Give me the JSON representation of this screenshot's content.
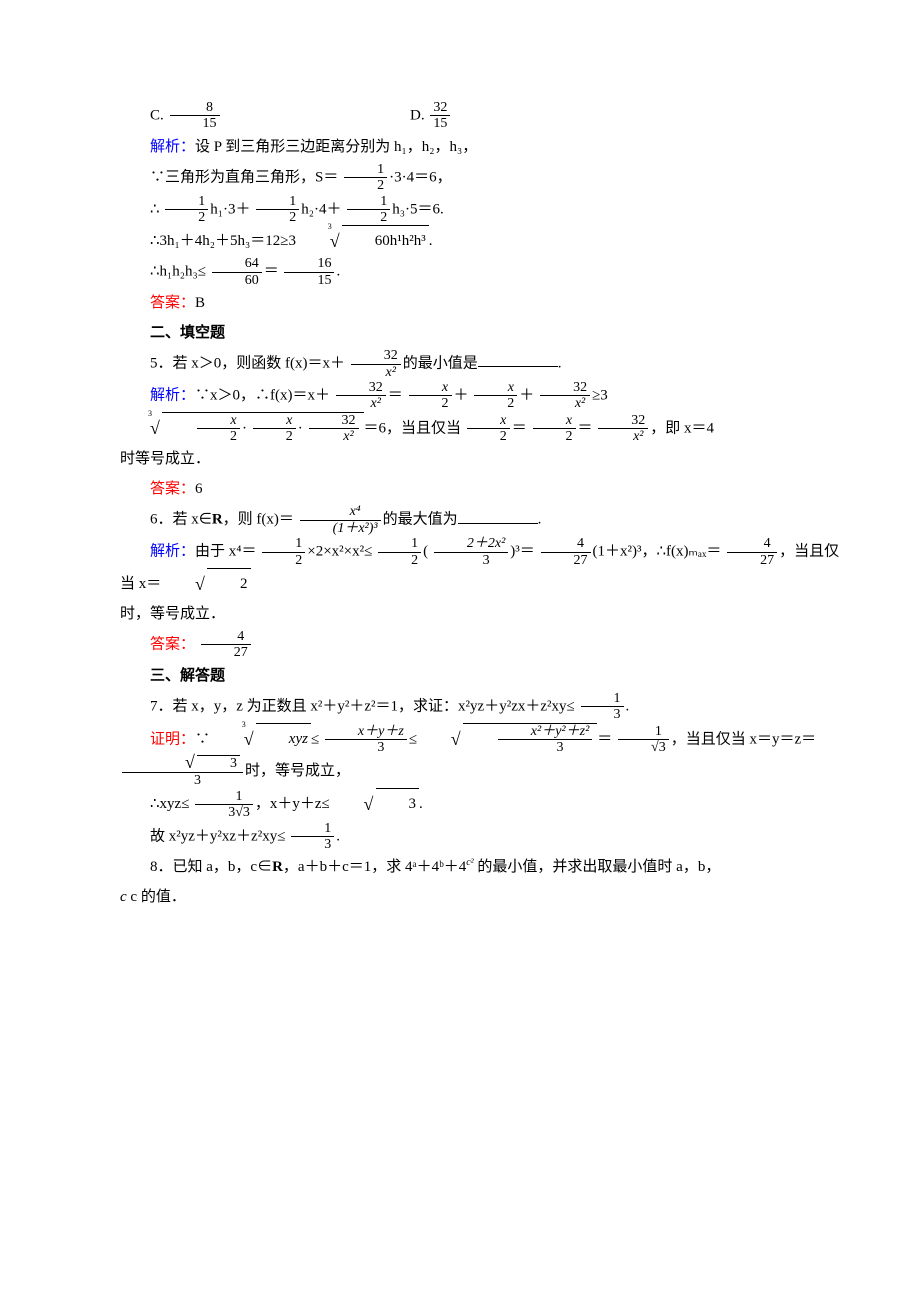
{
  "options": {
    "C_label": "C. ",
    "D_label": "D. "
  },
  "fractions": {
    "f_8_15": {
      "n": "8",
      "d": "15"
    },
    "f_32_15": {
      "n": "32",
      "d": "15"
    },
    "f_1_2": {
      "n": "1",
      "d": "2"
    },
    "f_64_60": {
      "n": "64",
      "d": "60"
    },
    "f_16_15": {
      "n": "16",
      "d": "15"
    },
    "f_32_x2": {
      "n": "32",
      "d": "x²"
    },
    "f_x_2": {
      "n": "x",
      "d": "2"
    },
    "f_4_27": {
      "n": "4",
      "d": "27"
    },
    "f_1_3": {
      "n": "1",
      "d": "3"
    },
    "f_xyz3": {
      "n": "x＋y＋z",
      "d": "3"
    },
    "f_sq3": {
      "n": "x²＋y²＋z²",
      "d": "3"
    },
    "f_1_sqrt3": {
      "n": "1",
      "d": "√3"
    },
    "f_sqrt3_3n": "3",
    "f_1_3s3": {
      "n": "1",
      "d": "3√3"
    },
    "f_x4_d": {
      "n": "x⁴",
      "d": "(1＋x²)³"
    },
    "f_2p2x2_3": {
      "n": "2＋2x²",
      "d": "3"
    }
  },
  "colors": {
    "blue": "#0000ff",
    "red": "#ff0000",
    "text": "#000000",
    "bg": "#ffffff"
  },
  "labels": {
    "jiexi": "解析：",
    "daan": "答案：",
    "zhengming": "证明："
  },
  "text": {
    "l1": "设 P 到三角形三边距离分别为 h₁，h₂，h₃，",
    "l2a": "∵三角形为直角三角形，S＝",
    "l2b": "·3·4＝6，",
    "l3a": "∴",
    "l3b": "h₁·3＋",
    "l3c": "h₂·4＋",
    "l3d": "h₃·5＝6.",
    "l4a": "∴3h₁＋4h₂＋5h₃＝12≥3",
    "l4b": "60h¹h²h³",
    "l4c": ".",
    "l5a": "∴h₁h₂h₃≤",
    "l5b": "＝",
    "l5c": ".",
    "ans_b": "B",
    "fill_title": "二、填空题",
    "q5a": "5．若 x＞0，则函数 f(x)＝x＋",
    "q5b": "的最小值是",
    "q5c": ".",
    "sol5a": "∵x＞0，∴f(x)＝x＋",
    "sol5b": "＝",
    "sol5c": "＋",
    "sol5d": "＋",
    "sol5e": "≥3",
    "sol5rad_inner": "·",
    "sol5f": "＝6，当且仅当",
    "sol5g": "＝",
    "sol5h": "＝",
    "sol5i": "，即 x＝4",
    "sol5_tail": "时等号成立．",
    "ans_6": "6",
    "q6a": "6．若 x∈",
    "q6R": "R",
    "q6b": "，则 f(x)＝",
    "q6c": "的最大值为",
    "q6d": ".",
    "sol6a": "由于 x⁴＝",
    "sol6b": "×2×x²×x²≤",
    "sol6c": "(",
    "sol6d": ")³＝",
    "sol6e": "(1＋x²)³，∴f(x)ₘₐₓ＝",
    "sol6f": "，当且仅当 x＝",
    "sol6g": "2",
    "sol6_tail": "时，等号成立．",
    "solve_title": "三、解答题",
    "q7a": "7．若 x，y，z 为正数且 x²＋y²＋z²＝1，求证：x²yz＋y²zx＋z²xy≤",
    "q7b": ".",
    "pf7a": "∵",
    "pf7b": "xyz",
    "pf7c": "≤",
    "pf7d": "≤",
    "pf7e": "＝",
    "pf7f": "，当且仅当 x＝y＝z＝",
    "pf7g": "时，等号成立，",
    "pf7_l2a": "∴xyz≤",
    "pf7_l2b": "，x＋y＋z≤",
    "pf7_l2c": "3",
    "pf7_l2d": ".",
    "pf7_l3a": "故 x²yz＋y²xz＋z²xy≤",
    "pf7_l3b": ".",
    "q8a": "8．已知 a，b，c∈",
    "q8b": "，a＋b＋c＝1，求 4ᵃ＋4ᵇ＋4",
    "q8_sup": "c²",
    "q8c": " 的最小值，并求出取最小值时 a，b，",
    "q8d": "c 的值．"
  }
}
